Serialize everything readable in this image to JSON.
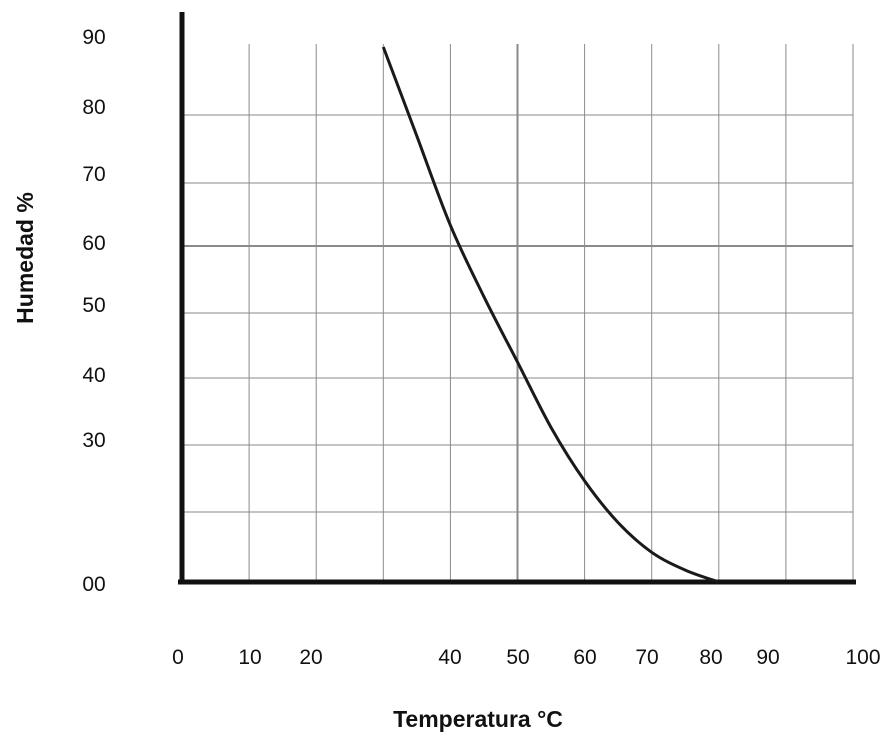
{
  "colors": {
    "grid": "#8a8a8a",
    "axis": "#111111",
    "curve": "#1a1a1a",
    "text": "#111111"
  },
  "chart_data": {
    "type": "line",
    "xlabel": "Temperatura °C",
    "ylabel": "Humedad %",
    "x_tick_labels": [
      "0",
      "10",
      "20",
      "40",
      "50",
      "60",
      "70",
      "80",
      "90",
      "100"
    ],
    "y_tick_labels": [
      "00",
      "30",
      "40",
      "50",
      "60",
      "70",
      "80",
      "90"
    ],
    "grid": true,
    "legend": "none",
    "series": [
      {
        "points": [
          {
            "x": 30,
            "y": 90
          },
          {
            "x": 35,
            "y": 75
          },
          {
            "x": 40,
            "y": 60
          },
          {
            "x": 45,
            "y": 48
          },
          {
            "x": 50,
            "y": 37
          },
          {
            "x": 55,
            "y": 26
          },
          {
            "x": 60,
            "y": 17
          },
          {
            "x": 65,
            "y": 10
          },
          {
            "x": 70,
            "y": 5
          },
          {
            "x": 75,
            "y": 2
          },
          {
            "x": 80,
            "y": 0
          }
        ]
      }
    ]
  }
}
